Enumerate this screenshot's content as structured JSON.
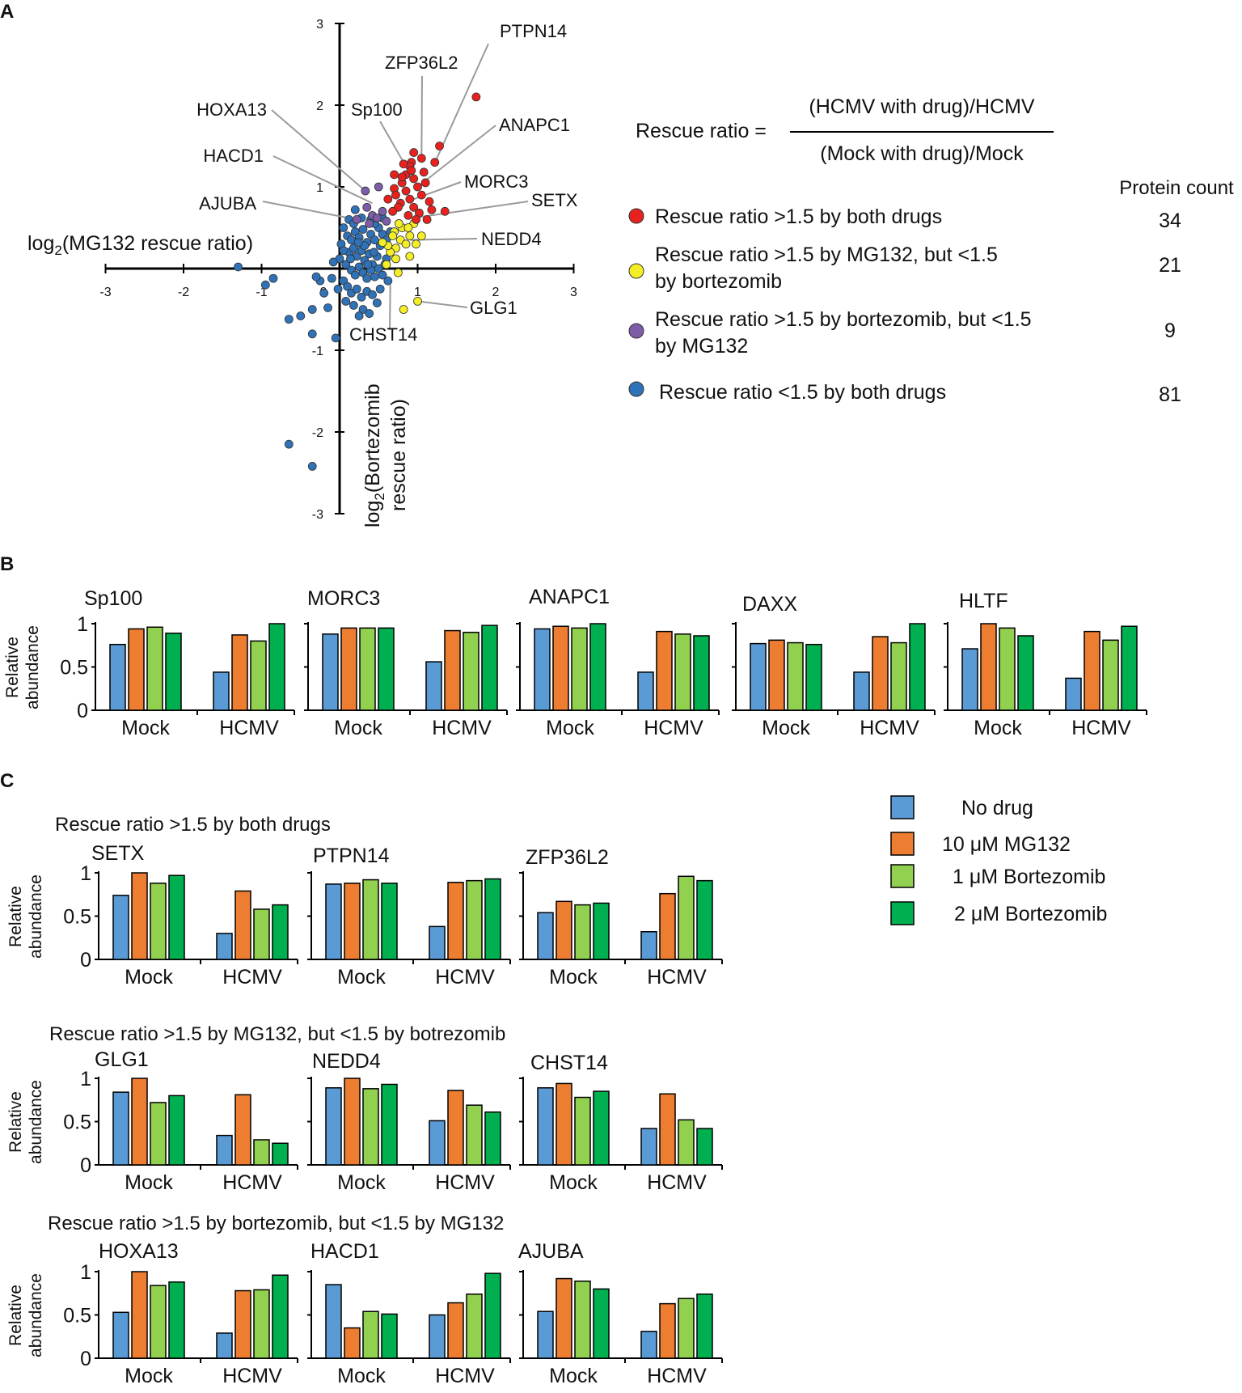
{
  "panel_labels": [
    "A",
    "B",
    "C"
  ],
  "colors": {
    "red": "#e8211e",
    "yellow": "#f4ee27",
    "purple": "#7d5ca8",
    "blue": "#2f72b8",
    "no_drug": "#5b9bd5",
    "mg132": "#ed7d31",
    "bort1": "#92d050",
    "bort2": "#00b050",
    "leader": "#9a9a9a",
    "axis": "#000000"
  },
  "equation": {
    "lhs": "Rescue ratio =",
    "numerator": "(HCMV with drug)/HCMV",
    "denominator": "(Mock with drug)/Mock"
  },
  "protein_count_header": "Protein count",
  "scatter_legend": [
    {
      "label": "Rescue ratio >1.5 by both drugs",
      "color": "red",
      "count": "34"
    },
    {
      "label": "Rescue ratio >1.5 by MG132, but <1.5",
      "label2": "by bortezomib",
      "color": "yellow",
      "count": "21"
    },
    {
      "label": "Rescue ratio >1.5 by bortezomib, but <1.5",
      "label2": "by MG132",
      "color": "purple",
      "count": "9"
    },
    {
      "label": "Rescue ratio <1.5 by both drugs",
      "color": "blue",
      "count": "81"
    }
  ],
  "bar_legend": {
    "items": [
      {
        "label": "No drug",
        "color": "no_drug"
      },
      {
        "label": "10 μM MG132",
        "color": "mg132"
      },
      {
        "label": "1 μM Bortezomib",
        "color": "bort1"
      },
      {
        "label": "2 μM Bortezomib",
        "color": "bort2"
      }
    ]
  },
  "c_group_titles": [
    "Rescue ratio >1.5 by both drugs",
    "Rescue ratio >1.5 by MG132, but <1.5 by botrezomib",
    "Rescue ratio >1.5 by bortezomib, but <1.5 by MG132"
  ],
  "chart_data": [
    {
      "type": "scatter",
      "panel": "A",
      "xlabel_pre": "log",
      "xlabel_sub": "2",
      "xlabel_post": "(MG132 rescue ratio)",
      "ylabel_line1_pre": "log",
      "ylabel_line1_sub": "2",
      "ylabel_line1_post": "(Bortezomib",
      "ylabel_line2": "rescue ratio)",
      "xlim": [
        -3,
        3
      ],
      "ylim": [
        -3,
        3
      ],
      "xticks": [
        "-3",
        "-2",
        "-1",
        "0",
        "1",
        "2",
        "3"
      ],
      "yticks": [
        "3",
        "2",
        "1",
        "-1",
        "-2",
        "-3"
      ],
      "series": [
        {
          "name": "Rescue ratio >1.5 by both drugs",
          "color": "red",
          "points": [
            [
              1.75,
              2.1
            ],
            [
              1.05,
              1.35
            ],
            [
              1.22,
              1.3
            ],
            [
              0.92,
              1.3
            ],
            [
              0.9,
              1.25
            ],
            [
              0.85,
              1.15
            ],
            [
              0.95,
              1.1
            ],
            [
              0.8,
              1.05
            ],
            [
              1.0,
              1.0
            ],
            [
              1.1,
              1.05
            ],
            [
              0.7,
              0.98
            ],
            [
              0.85,
              0.95
            ],
            [
              1.05,
              0.9
            ],
            [
              0.72,
              0.9
            ],
            [
              0.9,
              0.85
            ],
            [
              1.15,
              0.82
            ],
            [
              0.78,
              0.8
            ],
            [
              0.95,
              0.75
            ],
            [
              1.35,
              0.7
            ],
            [
              1.02,
              0.68
            ],
            [
              0.88,
              0.65
            ],
            [
              0.75,
              0.75
            ],
            [
              1.12,
              0.6
            ],
            [
              0.68,
              0.7
            ],
            [
              0.98,
              0.6
            ],
            [
              0.62,
              0.85
            ],
            [
              0.82,
              1.28
            ],
            [
              0.92,
              1.2
            ],
            [
              1.28,
              1.5
            ],
            [
              0.95,
              1.42
            ],
            [
              0.8,
              1.12
            ],
            [
              1.08,
              1.18
            ],
            [
              0.7,
              1.15
            ],
            [
              1.18,
              0.72
            ]
          ]
        },
        {
          "name": "Rescue ratio >1.5 by MG132, but <1.5 by bortezomib",
          "color": "yellow",
          "points": [
            [
              0.95,
              0.55
            ],
            [
              0.8,
              0.5
            ],
            [
              0.7,
              0.45
            ],
            [
              0.9,
              0.4
            ],
            [
              0.78,
              0.35
            ],
            [
              0.85,
              0.3
            ],
            [
              0.72,
              0.25
            ],
            [
              0.65,
              0.2
            ],
            [
              0.6,
              0.05
            ],
            [
              0.75,
              -0.05
            ],
            [
              1.0,
              -0.4
            ],
            [
              0.82,
              -0.5
            ],
            [
              0.9,
              0.15
            ],
            [
              0.68,
              0.4
            ],
            [
              1.05,
              0.4
            ],
            [
              0.62,
              0.28
            ],
            [
              0.98,
              0.3
            ],
            [
              0.72,
              0.12
            ],
            [
              0.88,
              0.5
            ],
            [
              0.55,
              0.32
            ],
            [
              0.76,
              0.55
            ]
          ]
        },
        {
          "name": "Rescue ratio >1.5 by bortezomib, but <1.5 by MG132",
          "color": "purple",
          "points": [
            [
              0.33,
              0.95
            ],
            [
              0.5,
              1.0
            ],
            [
              0.22,
              0.6
            ],
            [
              0.42,
              0.65
            ],
            [
              0.48,
              0.62
            ],
            [
              0.55,
              0.7
            ],
            [
              0.38,
              0.55
            ],
            [
              0.35,
              0.75
            ],
            [
              0.6,
              0.58
            ]
          ]
        },
        {
          "name": "Rescue ratio <1.5 by both drugs",
          "color": "blue",
          "points": [
            [
              -1.3,
              0.02
            ],
            [
              -0.85,
              -0.12
            ],
            [
              -0.95,
              -0.2
            ],
            [
              -0.65,
              -0.62
            ],
            [
              -0.5,
              -0.58
            ],
            [
              -0.35,
              -0.5
            ],
            [
              -0.1,
              -0.12
            ],
            [
              -0.25,
              -0.15
            ],
            [
              -0.02,
              -0.25
            ],
            [
              -0.15,
              -0.48
            ],
            [
              -0.2,
              -0.3
            ],
            [
              -0.3,
              -0.1
            ],
            [
              -0.05,
              -0.85
            ],
            [
              -0.35,
              -0.8
            ],
            [
              -0.65,
              -2.15
            ],
            [
              -0.35,
              -2.42
            ],
            [
              0.05,
              0.5
            ],
            [
              0.1,
              0.4
            ],
            [
              0.15,
              0.35
            ],
            [
              0.2,
              0.45
            ],
            [
              0.25,
              0.38
            ],
            [
              0.3,
              0.48
            ],
            [
              0.35,
              0.32
            ],
            [
              0.4,
              0.42
            ],
            [
              0.45,
              0.35
            ],
            [
              0.5,
              0.5
            ],
            [
              0.55,
              0.42
            ],
            [
              0.12,
              0.2
            ],
            [
              0.18,
              0.25
            ],
            [
              0.22,
              0.15
            ],
            [
              0.28,
              0.22
            ],
            [
              0.32,
              0.1
            ],
            [
              0.38,
              0.18
            ],
            [
              0.42,
              0.05
            ],
            [
              0.48,
              0.15
            ],
            [
              0.52,
              0.28
            ],
            [
              0.08,
              0.05
            ],
            [
              0.15,
              -0.02
            ],
            [
              0.2,
              -0.08
            ],
            [
              0.25,
              0.02
            ],
            [
              0.3,
              -0.05
            ],
            [
              0.35,
              -0.12
            ],
            [
              0.4,
              -0.02
            ],
            [
              0.45,
              -0.1
            ],
            [
              0.5,
              0.0
            ],
            [
              0.55,
              -0.08
            ],
            [
              0.6,
              0.12
            ],
            [
              0.65,
              0.45
            ],
            [
              0.05,
              -0.15
            ],
            [
              0.1,
              -0.22
            ],
            [
              0.15,
              -0.3
            ],
            [
              0.22,
              -0.25
            ],
            [
              0.28,
              -0.35
            ],
            [
              0.35,
              -0.28
            ],
            [
              0.42,
              -0.32
            ],
            [
              0.48,
              -0.42
            ],
            [
              0.18,
              -0.45
            ],
            [
              0.3,
              -0.5
            ],
            [
              0.08,
              -0.4
            ],
            [
              0.25,
              -0.58
            ],
            [
              0.38,
              -0.55
            ],
            [
              0.12,
              0.6
            ],
            [
              0.28,
              0.62
            ],
            [
              0.18,
              0.55
            ],
            [
              0.02,
              0.3
            ],
            [
              0.45,
              0.55
            ],
            [
              0.6,
              0.35
            ],
            [
              0.58,
              0.05
            ],
            [
              0.0,
              0.12
            ],
            [
              0.05,
              0.22
            ],
            [
              0.32,
              0.28
            ],
            [
              0.52,
              -0.25
            ],
            [
              0.4,
              0.6
            ],
            [
              0.2,
              0.72
            ],
            [
              0.62,
              -0.15
            ],
            [
              -0.08,
              0.08
            ],
            [
              0.14,
              0.12
            ],
            [
              0.36,
              0.05
            ],
            [
              0.24,
              0.32
            ],
            [
              0.44,
              0.2
            ],
            [
              0.55,
              0.62
            ]
          ]
        }
      ],
      "callouts": [
        {
          "label": "PTPN14",
          "x": 1.2,
          "y": 1.25
        },
        {
          "label": "ZFP36L2",
          "x": 1.05,
          "y": 1.38
        },
        {
          "label": "Sp100",
          "x": 0.85,
          "y": 1.25
        },
        {
          "label": "HOXA13",
          "x": 0.33,
          "y": 0.95
        },
        {
          "label": "HACD1",
          "x": 0.42,
          "y": 0.8
        },
        {
          "label": "AJUBA",
          "x": 0.22,
          "y": 0.6
        },
        {
          "label": "ANAPC1",
          "x": 1.0,
          "y": 1.0
        },
        {
          "label": "MORC3",
          "x": 0.95,
          "y": 0.85
        },
        {
          "label": "SETX",
          "x": 0.95,
          "y": 0.62
        },
        {
          "label": "NEDD4",
          "x": 0.9,
          "y": 0.35
        },
        {
          "label": "GLG1",
          "x": 1.0,
          "y": -0.4
        },
        {
          "label": "CHST14",
          "x": 0.65,
          "y": -0.2
        }
      ]
    },
    {
      "type": "bar",
      "panel": "B",
      "ylabel": "Relative abundance",
      "yticks": [
        "1",
        "0.5",
        "0"
      ],
      "ylim": [
        0,
        1
      ],
      "categories": [
        "Mock",
        "HCMV"
      ],
      "series_names": [
        "No drug",
        "10 μM MG132",
        "1 μM Bortezomib",
        "2 μM Bortezomib"
      ],
      "proteins": [
        {
          "name": "Sp100",
          "values": [
            [
              0.76,
              0.94,
              0.96,
              0.89
            ],
            [
              0.44,
              0.87,
              0.8,
              1.0
            ]
          ]
        },
        {
          "name": "MORC3",
          "values": [
            [
              0.88,
              0.95,
              0.95,
              0.95
            ],
            [
              0.56,
              0.92,
              0.9,
              0.98
            ]
          ]
        },
        {
          "name": "ANAPC1",
          "values": [
            [
              0.94,
              0.97,
              0.95,
              1.0
            ],
            [
              0.44,
              0.91,
              0.88,
              0.86
            ]
          ]
        },
        {
          "name": "DAXX",
          "values": [
            [
              0.77,
              0.81,
              0.78,
              0.76
            ],
            [
              0.44,
              0.85,
              0.78,
              1.0
            ]
          ]
        },
        {
          "name": "HLTF",
          "values": [
            [
              0.71,
              1.0,
              0.95,
              0.86
            ],
            [
              0.37,
              0.91,
              0.81,
              0.97
            ]
          ]
        }
      ]
    },
    {
      "type": "bar",
      "panel": "C",
      "group": "Rescue ratio >1.5 by both drugs",
      "ylabel": "Relative abundance",
      "yticks": [
        "1",
        "0.5",
        "0"
      ],
      "ylim": [
        0,
        1
      ],
      "categories": [
        "Mock",
        "HCMV"
      ],
      "series_names": [
        "No drug",
        "10 μM MG132",
        "1 μM Bortezomib",
        "2 μM Bortezomib"
      ],
      "proteins": [
        {
          "name": "SETX",
          "values": [
            [
              0.74,
              1.0,
              0.88,
              0.97
            ],
            [
              0.3,
              0.79,
              0.58,
              0.63
            ]
          ]
        },
        {
          "name": "PTPN14",
          "values": [
            [
              0.87,
              0.88,
              0.92,
              0.88
            ],
            [
              0.38,
              0.89,
              0.91,
              0.93
            ]
          ]
        },
        {
          "name": "ZFP36L2",
          "values": [
            [
              0.54,
              0.67,
              0.63,
              0.65
            ],
            [
              0.32,
              0.76,
              0.96,
              0.91
            ]
          ]
        }
      ]
    },
    {
      "type": "bar",
      "panel": "C",
      "group": "Rescue ratio >1.5 by MG132, but <1.5 by botrezomib",
      "ylabel": "Relative abundance",
      "yticks": [
        "1",
        "0.5",
        "0"
      ],
      "ylim": [
        0,
        1
      ],
      "categories": [
        "Mock",
        "HCMV"
      ],
      "series_names": [
        "No drug",
        "10 μM MG132",
        "1 μM Bortezomib",
        "2 μM Bortezomib"
      ],
      "proteins": [
        {
          "name": "GLG1",
          "values": [
            [
              0.84,
              1.0,
              0.72,
              0.8
            ],
            [
              0.34,
              0.81,
              0.29,
              0.25
            ]
          ]
        },
        {
          "name": "NEDD4",
          "values": [
            [
              0.89,
              1.0,
              0.88,
              0.93
            ],
            [
              0.51,
              0.86,
              0.69,
              0.61
            ]
          ]
        },
        {
          "name": "CHST14",
          "values": [
            [
              0.89,
              0.94,
              0.78,
              0.85
            ],
            [
              0.42,
              0.82,
              0.52,
              0.42
            ]
          ]
        }
      ]
    },
    {
      "type": "bar",
      "panel": "C",
      "group": "Rescue ratio >1.5 by bortezomib, but <1.5 by MG132",
      "ylabel": "Relative abundance",
      "yticks": [
        "1",
        "0.5",
        "0"
      ],
      "ylim": [
        0,
        1
      ],
      "categories": [
        "Mock",
        "HCMV"
      ],
      "series_names": [
        "No drug",
        "10 μM MG132",
        "1 μM Bortezomib",
        "2 μM Bortezomib"
      ],
      "proteins": [
        {
          "name": "HOXA13",
          "values": [
            [
              0.53,
              1.0,
              0.84,
              0.88
            ],
            [
              0.29,
              0.78,
              0.79,
              0.96
            ]
          ]
        },
        {
          "name": "HACD1",
          "values": [
            [
              0.85,
              0.35,
              0.54,
              0.51
            ],
            [
              0.5,
              0.64,
              0.74,
              0.98
            ]
          ]
        },
        {
          "name": "AJUBA",
          "values": [
            [
              0.54,
              0.92,
              0.89,
              0.8
            ],
            [
              0.31,
              0.63,
              0.69,
              0.74
            ]
          ]
        }
      ]
    }
  ]
}
